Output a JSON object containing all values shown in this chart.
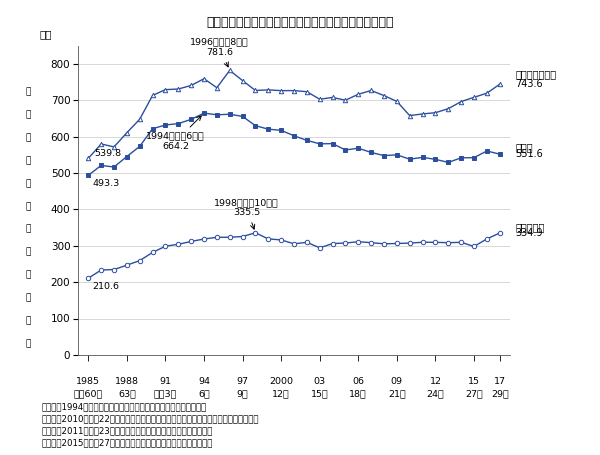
{
  "title": "図８　各種世帯の１世帯当たり平均所得金額の年次推移",
  "ylabel_top": "万円",
  "ylabel_side": "１\n世\n帯\n当\nた\nり\n平\n均\n所\n得\n金\n額",
  "years": [
    1985,
    1986,
    1987,
    1988,
    1989,
    1990,
    1991,
    1992,
    1993,
    1994,
    1995,
    1996,
    1997,
    1998,
    1999,
    2000,
    2001,
    2002,
    2003,
    2004,
    2005,
    2006,
    2007,
    2008,
    2009,
    2010,
    2011,
    2012,
    2013,
    2014,
    2015,
    2016,
    2017
  ],
  "xtick_labels_top": [
    "1985",
    "1988",
    "91",
    "94",
    "97",
    "2000",
    "03",
    "06",
    "09",
    "12",
    "15",
    "17"
  ],
  "xtick_labels_bot": [
    "昭和60年",
    "63年",
    "平成3年",
    "6年",
    "9年",
    "12年",
    "15年",
    "18年",
    "21年",
    "24年",
    "27年",
    "29年"
  ],
  "xtick_years": [
    1985,
    1988,
    1991,
    1994,
    1997,
    2000,
    2003,
    2006,
    2009,
    2012,
    2015,
    2017
  ],
  "ylim": [
    0,
    850
  ],
  "yticks": [
    0,
    100,
    200,
    300,
    400,
    500,
    600,
    700,
    800
  ],
  "line_color": "#2B4E9E",
  "children_households": [
    539.8,
    579.5,
    571.4,
    610.3,
    647.5,
    712.8,
    728.8,
    730.4,
    740.3,
    758.7,
    734.1,
    781.6,
    753.6,
    726.4,
    728.1,
    726.0,
    726.1,
    723.0,
    702.4,
    707.3,
    699.7,
    716.0,
    726.4,
    712.4,
    696.4,
    657.4,
    662.0,
    665.4,
    676.4,
    696.0,
    707.6,
    719.0,
    743.6
  ],
  "all_households": [
    493.3,
    520.5,
    516.2,
    545.0,
    572.9,
    621.4,
    631.6,
    635.4,
    647.1,
    664.2,
    659.6,
    661.2,
    655.2,
    629.7,
    620.2,
    616.9,
    602.0,
    589.3,
    579.9,
    580.4,
    563.0,
    567.8,
    556.2,
    547.5,
    549.6,
    537.7,
    542.7,
    537.2,
    528.9,
    541.4,
    541.9,
    560.2,
    551.6
  ],
  "elderly_households": [
    210.6,
    233.2,
    234.5,
    246.5,
    259.1,
    281.4,
    298.6,
    303.9,
    311.7,
    318.4,
    323.0,
    323.2,
    325.2,
    335.5,
    318.6,
    315.9,
    305.2,
    309.3,
    294.2,
    305.8,
    307.4,
    310.9,
    308.4,
    305.1,
    306.1,
    307.2,
    309.5,
    309.2,
    308.3,
    309.3,
    297.9,
    318.6,
    334.9
  ],
  "note_lines": [
    "注：１）1994（平成６）年の数値は，兵庫県を除いたものである。",
    "　　２）2010（平成22）年の数値は，岩手県，宮城県及び福島県を除いたものである。",
    "　　３）2011（平成23）年の数値は，福島県を除いたものである。",
    "　　４）2015（平成27）年の数値は，熊本県を除いたものである。"
  ]
}
